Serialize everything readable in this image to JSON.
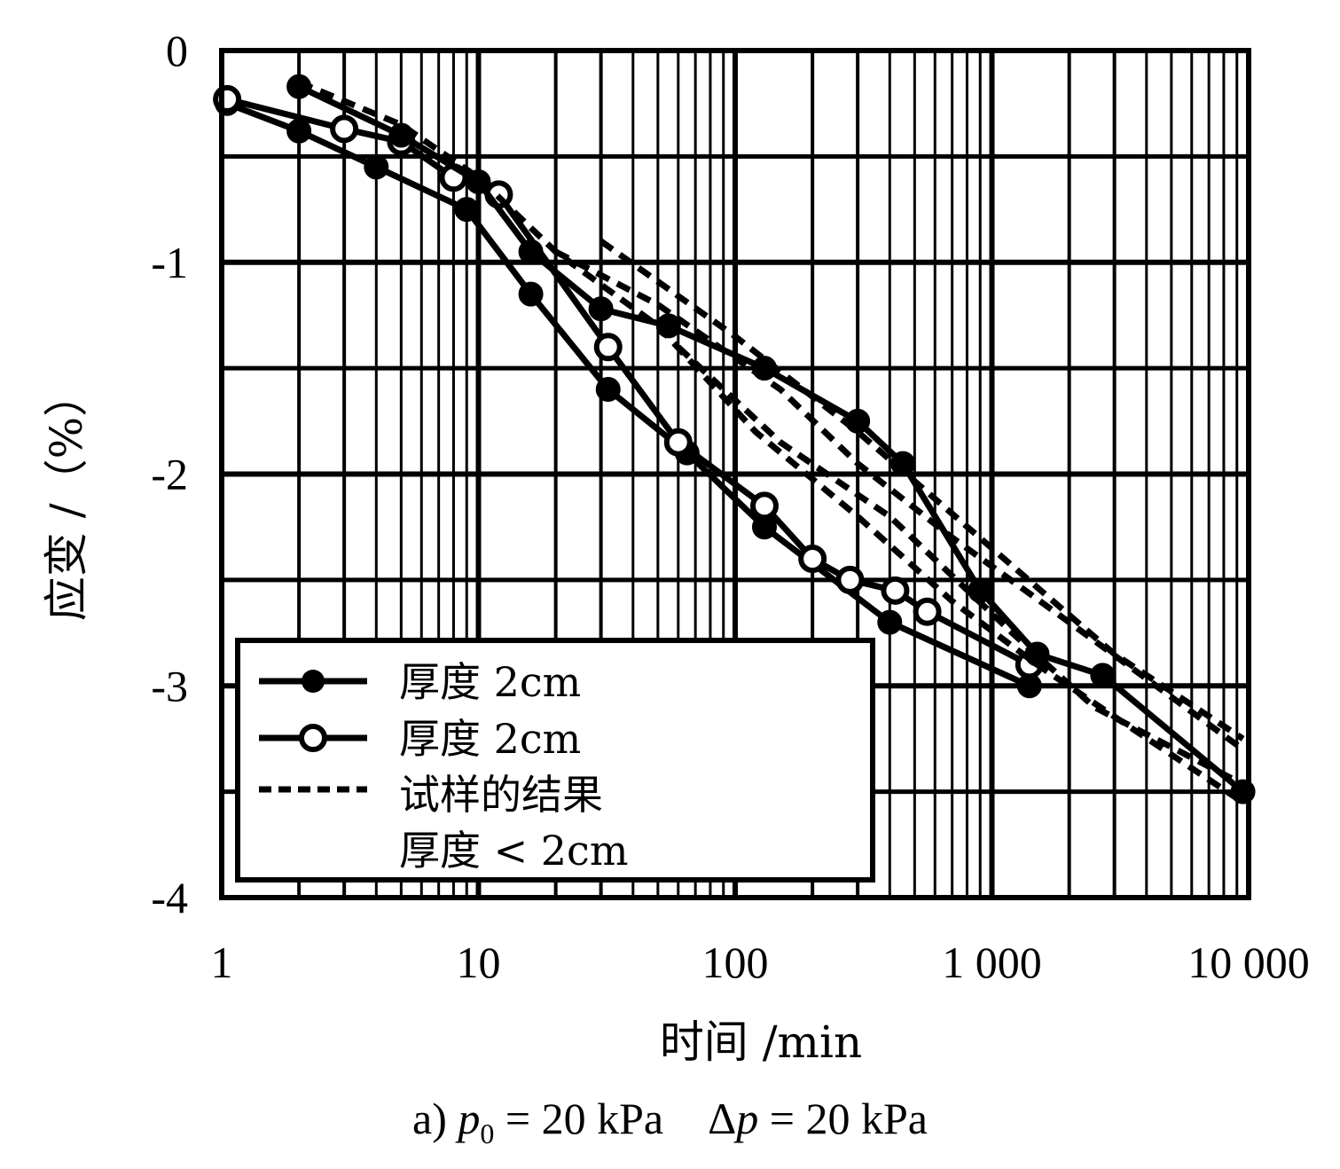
{
  "chart_data": {
    "type": "line",
    "title": "",
    "xlabel": "时间 /min",
    "ylabel": "应变 /（%）",
    "x_scale": "log",
    "xlim": [
      1,
      10000
    ],
    "ylim": [
      -4,
      0
    ],
    "x_ticks": [
      1,
      10,
      100,
      1000,
      10000
    ],
    "x_tick_labels": [
      "1",
      "10",
      "100",
      "1 000",
      "10 000"
    ],
    "y_ticks": [
      0,
      -1,
      -2,
      -3,
      -4
    ],
    "y_tick_labels": [
      "0",
      "-1",
      "-2",
      "-3",
      "-4"
    ],
    "grid": true,
    "legend_position": "bottom-left",
    "series": [
      {
        "name": "厚度 2cm",
        "marker": "filled-circle",
        "line": "solid",
        "x": [
          1.05,
          2,
          4,
          9,
          16,
          32,
          65,
          130,
          400,
          1400
        ],
        "y": [
          -0.25,
          -0.38,
          -0.55,
          -0.75,
          -1.15,
          -1.6,
          -1.9,
          -2.25,
          -2.7,
          -3.0
        ]
      },
      {
        "name": "厚度 2cm",
        "marker": "open-circle",
        "line": "solid",
        "x": [
          1.05,
          3,
          5,
          8,
          12,
          32,
          60,
          130,
          200,
          280,
          420,
          560,
          1400
        ],
        "y": [
          -0.23,
          -0.37,
          -0.43,
          -0.6,
          -0.68,
          -1.4,
          -1.85,
          -2.15,
          -2.4,
          -2.5,
          -2.55,
          -2.65,
          -2.9
        ]
      },
      {
        "name": "厚度 2cm",
        "marker": "filled-circle",
        "line": "solid",
        "x": [
          2,
          5,
          10,
          16,
          30,
          55,
          130,
          300,
          450,
          900,
          1500,
          2700,
          9500
        ],
        "y": [
          -0.17,
          -0.4,
          -0.62,
          -0.95,
          -1.22,
          -1.3,
          -1.5,
          -1.75,
          -1.95,
          -2.55,
          -2.85,
          -2.95,
          -3.5
        ]
      },
      {
        "name": "试样的结果 厚度 < 2cm",
        "marker": "none",
        "line": "dashed",
        "x": [
          2,
          5,
          10,
          20,
          50,
          120,
          300,
          700,
          1500,
          3500,
          9500
        ],
        "y": [
          -0.15,
          -0.35,
          -0.6,
          -0.95,
          -1.3,
          -1.8,
          -2.2,
          -2.6,
          -2.9,
          -3.2,
          -3.55
        ]
      },
      {
        "name": "",
        "marker": "none",
        "line": "dashed",
        "x": [
          20,
          50,
          150,
          300,
          700,
          2000,
          9500
        ],
        "y": [
          -0.95,
          -1.2,
          -1.6,
          -1.95,
          -2.3,
          -2.7,
          -3.3
        ]
      },
      {
        "name": "",
        "marker": "none",
        "line": "dashed",
        "x": [
          30,
          100,
          300,
          1000,
          3000,
          9500
        ],
        "y": [
          -0.9,
          -1.35,
          -1.8,
          -2.35,
          -2.85,
          -3.25
        ]
      },
      {
        "name": "",
        "marker": "none",
        "line": "dashed",
        "x": [
          60,
          150,
          400,
          1200,
          2500,
          9000
        ],
        "y": [
          -1.4,
          -1.85,
          -2.2,
          -2.75,
          -3.1,
          -3.45
        ]
      }
    ]
  },
  "legend": {
    "items": [
      "厚度 2cm",
      "厚度 2cm",
      "试样的结果",
      "厚度 < 2cm"
    ]
  },
  "caption": {
    "prefix": "a) ",
    "p0_symbol": "p",
    "p0_sub": "0",
    "p0_value": " = 20  kPa",
    "gap": "    ",
    "dp_delta": "Δ",
    "dp_symbol": "p",
    "dp_value": " = 20  kPa"
  }
}
